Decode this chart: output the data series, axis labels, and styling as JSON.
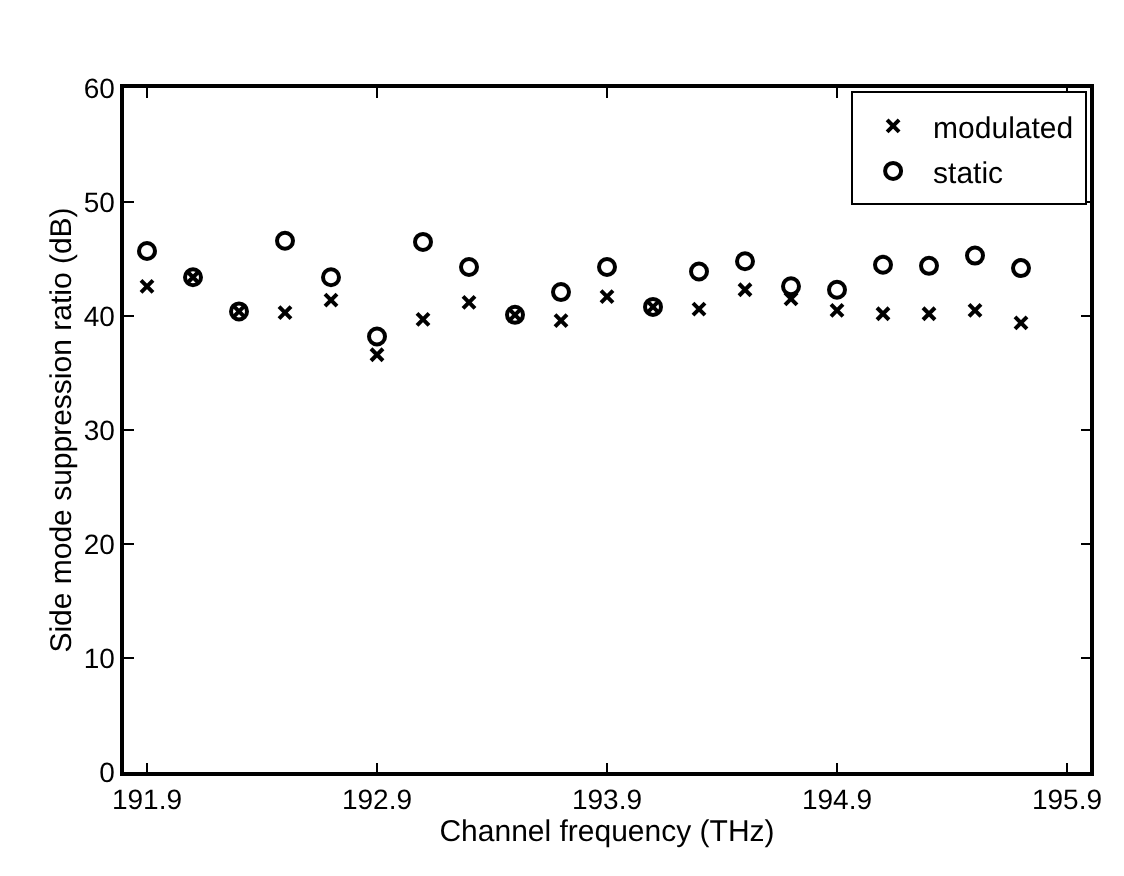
{
  "chart_data": {
    "type": "scatter",
    "xlabel": "Channel frequency (THz)",
    "ylabel": "Side mode suppression ratio (dB)",
    "x": [
      191.9,
      192.1,
      192.3,
      192.5,
      192.7,
      192.9,
      193.1,
      193.3,
      193.5,
      193.7,
      193.9,
      194.1,
      194.3,
      194.5,
      194.7,
      194.9,
      195.1,
      195.3,
      195.5,
      195.7
    ],
    "series": [
      {
        "name": "modulated",
        "color": "#000000",
        "marker": "cross",
        "values": [
          42.6,
          43.4,
          40.4,
          40.3,
          41.4,
          36.6,
          39.7,
          41.2,
          40.1,
          39.6,
          41.7,
          40.8,
          40.6,
          42.3,
          41.5,
          40.5,
          40.2,
          40.2,
          40.5,
          39.4
        ]
      },
      {
        "name": "static",
        "color": "#000000",
        "marker": "circle",
        "values": [
          45.7,
          43.4,
          40.4,
          46.6,
          43.4,
          38.2,
          46.5,
          44.3,
          40.1,
          42.1,
          44.3,
          40.8,
          43.9,
          44.8,
          42.6,
          42.3,
          44.5,
          44.4,
          45.3,
          44.2
        ]
      }
    ],
    "xlim": [
      191.8,
      196.0
    ],
    "xticks": [
      191.9,
      192.9,
      193.9,
      194.9,
      195.9
    ],
    "ylim": [
      0,
      60
    ],
    "yticks": [
      0,
      10,
      20,
      30,
      40,
      50,
      60
    ],
    "legend": "top right"
  }
}
